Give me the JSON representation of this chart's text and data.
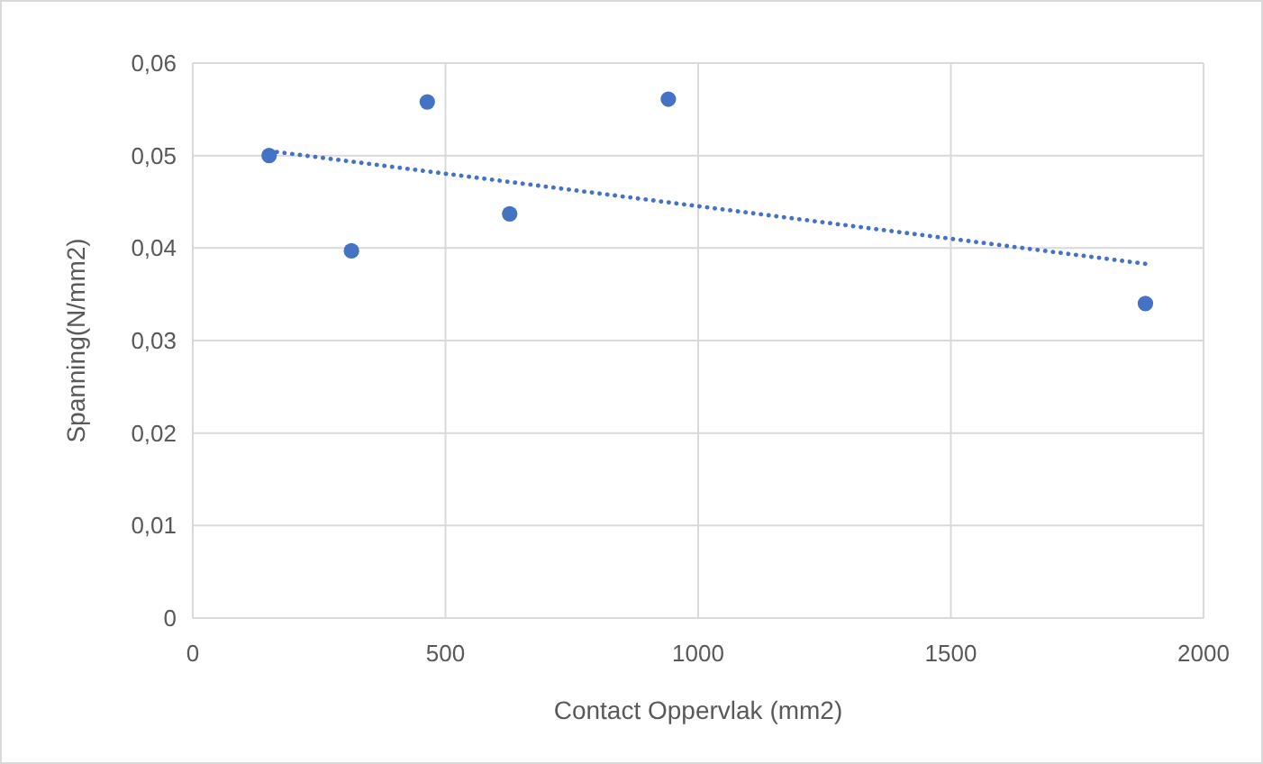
{
  "chart_data": {
    "type": "scatter",
    "xlabel": "Contact Oppervlak (mm2)",
    "ylabel": "Spanning(N/mm2)",
    "xlim": [
      0,
      2000
    ],
    "xticks": [
      0,
      500,
      1000,
      1500,
      2000
    ],
    "ylim": [
      0,
      0.06
    ],
    "yticks": [
      {
        "value": 0,
        "label": "0"
      },
      {
        "value": 0.01,
        "label": "0,01"
      },
      {
        "value": 0.02,
        "label": "0,02"
      },
      {
        "value": 0.03,
        "label": "0,03"
      },
      {
        "value": 0.04,
        "label": "0,04"
      },
      {
        "value": 0.05,
        "label": "0,05"
      },
      {
        "value": 0.06,
        "label": "0,06"
      }
    ],
    "grid": true,
    "series": [
      {
        "color": "#4472c4",
        "marker": "circle",
        "x": [
          151,
          314,
          464,
          627,
          941,
          1885
        ],
        "values": [
          0.05,
          0.0397,
          0.0558,
          0.0437,
          0.0561,
          0.034
        ]
      },
      {
        "type": "line",
        "color": "#4472c4",
        "line_style": "dotted",
        "x": [
          151,
          1885
        ],
        "values": [
          0.0505,
          0.0383
        ]
      }
    ]
  }
}
